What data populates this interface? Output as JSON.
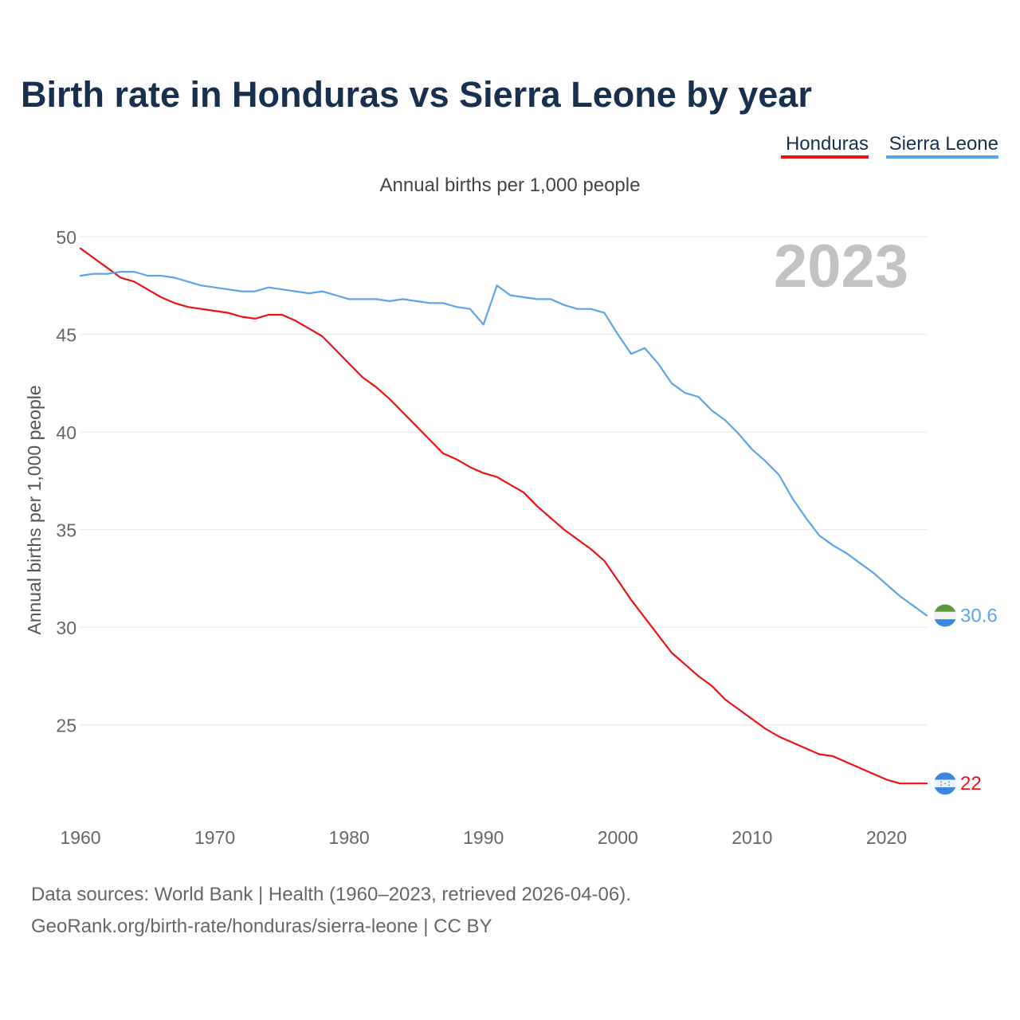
{
  "chart_data": {
    "type": "line",
    "title": "Birth rate in Honduras vs Sierra Leone by year",
    "subtitle": "Annual births per 1,000 people",
    "ylabel": "Annual births per 1,000 people",
    "xlabel": "",
    "xlim": [
      1960,
      2023
    ],
    "ylim": [
      20.5,
      50
    ],
    "grid": true,
    "legend_position": "top-right",
    "current_year_label": "2023",
    "x_ticks": [
      1960,
      1970,
      1980,
      1990,
      2000,
      2010,
      2020
    ],
    "x_tick_labels": [
      "1960",
      "1970",
      "1980",
      "1990",
      "2000",
      "2010",
      "2020"
    ],
    "y_ticks": [
      25,
      30,
      35,
      40,
      45,
      50
    ],
    "y_tick_labels": [
      "25",
      "30",
      "35",
      "40",
      "45",
      "50"
    ],
    "x": [
      1960,
      1961,
      1962,
      1963,
      1964,
      1965,
      1966,
      1967,
      1968,
      1969,
      1970,
      1971,
      1972,
      1973,
      1974,
      1975,
      1976,
      1977,
      1978,
      1979,
      1980,
      1981,
      1982,
      1983,
      1984,
      1985,
      1986,
      1987,
      1988,
      1989,
      1990,
      1991,
      1992,
      1993,
      1994,
      1995,
      1996,
      1997,
      1998,
      1999,
      2000,
      2001,
      2002,
      2003,
      2004,
      2005,
      2006,
      2007,
      2008,
      2009,
      2010,
      2011,
      2012,
      2013,
      2014,
      2015,
      2016,
      2017,
      2018,
      2019,
      2020,
      2021,
      2022,
      2023
    ],
    "series": [
      {
        "name": "Honduras",
        "color": "#ee1111",
        "end_label": "22",
        "values": [
          49.4,
          48.9,
          48.4,
          47.9,
          47.7,
          47.3,
          46.9,
          46.6,
          46.4,
          46.3,
          46.2,
          46.1,
          45.9,
          45.8,
          46.0,
          46.0,
          45.7,
          45.3,
          44.9,
          44.2,
          43.5,
          42.8,
          42.3,
          41.7,
          41.0,
          40.3,
          39.6,
          38.9,
          38.6,
          38.2,
          37.9,
          37.7,
          37.3,
          36.9,
          36.2,
          35.6,
          35.0,
          34.5,
          34.0,
          33.4,
          32.4,
          31.4,
          30.5,
          29.6,
          28.7,
          28.1,
          27.5,
          27.0,
          26.3,
          25.8,
          25.3,
          24.8,
          24.4,
          24.1,
          23.8,
          23.5,
          23.4,
          23.1,
          22.8,
          22.5,
          22.2,
          22.0,
          22.0,
          22.0
        ]
      },
      {
        "name": "Sierra Leone",
        "color": "#5ba4ea",
        "end_label": "30.6",
        "values": [
          48.0,
          48.1,
          48.1,
          48.2,
          48.2,
          48.0,
          48.0,
          47.9,
          47.7,
          47.5,
          47.4,
          47.3,
          47.2,
          47.2,
          47.4,
          47.3,
          47.2,
          47.1,
          47.2,
          47.0,
          46.8,
          46.8,
          46.8,
          46.7,
          46.8,
          46.7,
          46.6,
          46.6,
          46.4,
          46.3,
          45.5,
          47.5,
          47.0,
          46.9,
          46.8,
          46.8,
          46.5,
          46.3,
          46.3,
          46.1,
          45.0,
          44.0,
          44.3,
          43.5,
          42.5,
          42.0,
          41.8,
          41.1,
          40.6,
          39.9,
          39.1,
          38.5,
          37.8,
          36.6,
          35.6,
          34.7,
          34.2,
          33.8,
          33.3,
          32.8,
          32.2,
          31.6,
          31.1,
          30.6
        ]
      }
    ]
  },
  "footer": {
    "line1": "Data sources: World Bank | Health (1960–2023, retrieved 2026-04-06).",
    "line2": "GeoRank.org/birth-rate/honduras/sierra-leone | CC BY"
  }
}
